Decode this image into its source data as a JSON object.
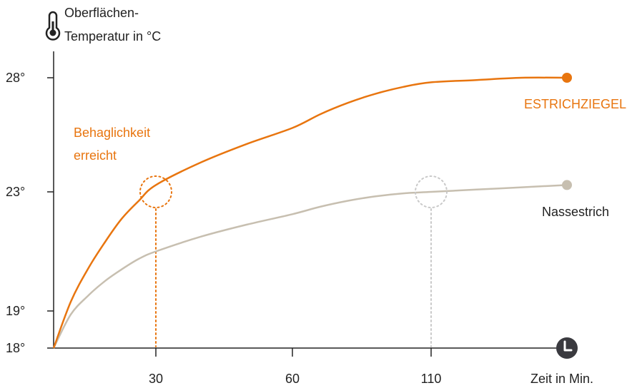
{
  "colors": {
    "orange": "#e8750f",
    "beige": "#c7bfb0",
    "axis": "#222222",
    "dotted_gray": "#c9c9c9"
  },
  "icons": {
    "y_axis": "thermometer-icon",
    "x_axis": "clock-icon"
  },
  "chart_data": {
    "type": "line",
    "ylabel_line1": "Oberflächen-",
    "ylabel_line2": "Temperatur in °C",
    "xlabel": "Zeit in Min.",
    "y_ticks": [
      {
        "value": 28,
        "label": "28°"
      },
      {
        "value": 23,
        "label": "23°"
      },
      {
        "value": 19,
        "label": "19°"
      },
      {
        "value": 18,
        "label": "18°"
      }
    ],
    "x_ticks": [
      {
        "value": 30,
        "label": "30"
      },
      {
        "value": 60,
        "label": "60"
      },
      {
        "value": 110,
        "label": "110"
      }
    ],
    "series": [
      {
        "name": "ESTRICHZIEGEL",
        "color": "#e8750f",
        "x": [
          0,
          5,
          10,
          15,
          20,
          25,
          30,
          40,
          50,
          60,
          70,
          80,
          90,
          100,
          110,
          120,
          130,
          140
        ],
        "y": [
          18,
          19.3,
          20.4,
          21.3,
          22.1,
          22.7,
          23.3,
          24.3,
          25.1,
          25.8,
          26.4,
          26.9,
          27.3,
          27.6,
          27.8,
          27.9,
          28.0,
          28.0
        ]
      },
      {
        "name": "Nassestrich",
        "color": "#c7bfb0",
        "x": [
          0,
          5,
          10,
          15,
          20,
          25,
          30,
          40,
          50,
          60,
          70,
          80,
          90,
          100,
          110,
          120,
          130,
          140
        ],
        "y": [
          18,
          18.9,
          19.5,
          20.0,
          20.4,
          20.75,
          21.0,
          21.5,
          21.9,
          22.25,
          22.5,
          22.7,
          22.85,
          22.95,
          23.0,
          23.1,
          23.2,
          23.3
        ]
      }
    ],
    "annotations": [
      {
        "text_line1": "Behaglichkeit",
        "text_line2": "erreicht",
        "series": "ESTRICHZIEGEL",
        "x": 30,
        "y": 23
      }
    ],
    "highlight_points": [
      {
        "series": "ESTRICHZIEGEL",
        "x": 30,
        "y": 23
      },
      {
        "series": "Nassestrich",
        "x": 110,
        "y": 23
      }
    ],
    "xlim": [
      0,
      140
    ],
    "ylim": [
      18,
      28
    ],
    "grid": false
  }
}
